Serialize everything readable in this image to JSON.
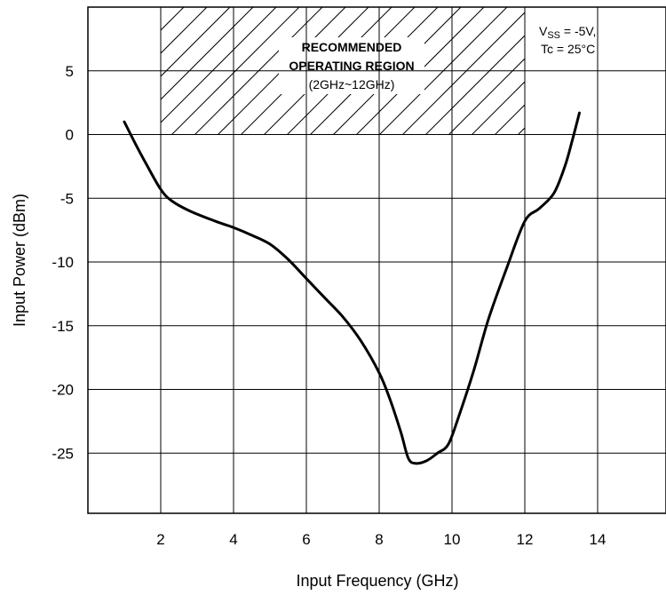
{
  "chart_data": {
    "type": "line",
    "title": "",
    "xlabel": "Input Frequency (GHz)",
    "ylabel": "Input Power (dBm)",
    "xlim": [
      0,
      15
    ],
    "ylim": [
      -30,
      10
    ],
    "x_ticks": [
      2,
      4,
      6,
      8,
      10,
      12,
      14
    ],
    "x_tick_labels": [
      "2",
      "4",
      "6",
      "8",
      "10",
      "12",
      "14"
    ],
    "y_ticks": [
      5,
      0,
      -5,
      -10,
      -15,
      -20,
      -25
    ],
    "y_tick_labels": [
      "5",
      "0",
      "-5",
      "-10",
      "-15",
      "-20",
      "-25"
    ],
    "x_gridlines": [
      2,
      4,
      6,
      8,
      10,
      12,
      14
    ],
    "y_gridlines": [
      5,
      0,
      -5,
      -10,
      -15,
      -20,
      -25
    ],
    "grid": true,
    "series": [
      {
        "x": [
          1.0,
          1.3,
          1.6,
          2.0,
          2.3,
          2.8,
          3.5,
          4.0,
          4.5,
          5.0,
          5.5,
          6.0,
          6.5,
          7.0,
          7.5,
          8.0,
          8.3,
          8.6,
          8.8,
          9.0,
          9.3,
          9.6,
          9.9,
          10.2,
          10.6,
          11.0,
          11.5,
          12.0,
          12.4,
          12.8,
          13.1,
          13.3,
          13.5
        ],
        "y": [
          1.0,
          -0.7,
          -2.3,
          -4.3,
          -5.2,
          -6.0,
          -6.8,
          -7.3,
          -7.9,
          -8.6,
          -9.8,
          -11.3,
          -12.8,
          -14.3,
          -16.2,
          -18.7,
          -20.8,
          -23.4,
          -25.4,
          -25.8,
          -25.6,
          -25.0,
          -24.3,
          -22.0,
          -18.5,
          -14.5,
          -10.5,
          -6.8,
          -5.8,
          -4.6,
          -2.5,
          -0.5,
          1.7
        ],
        "color": "#000000"
      }
    ],
    "annotations": {
      "region_title_line1": "RECOMMENDED",
      "region_title_line2": "OPERATING REGION",
      "region_range": "(2GHz~12GHz)",
      "region_x": [
        2,
        12
      ],
      "region_y": [
        0,
        10
      ],
      "condition_vss_prefix": "V",
      "condition_vss_sub": "SS",
      "condition_vss_value": " = -5V,",
      "condition_tc": "Tc = 25°C"
    }
  }
}
